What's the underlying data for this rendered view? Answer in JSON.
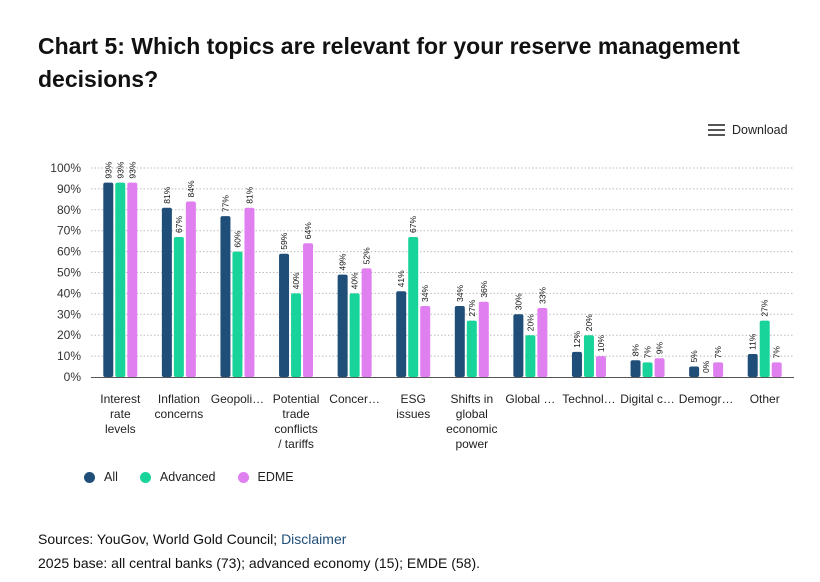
{
  "title": "Chart 5: Which topics are relevant for your reserve management decisions?",
  "download_label": "Download",
  "colors": {
    "All": "#1f4e79",
    "Advanced": "#18d49a",
    "EDME": "#e07ff0"
  },
  "legend": [
    {
      "label": "All",
      "color": "#1f4e79"
    },
    {
      "label": "Advanced",
      "color": "#18d49a"
    },
    {
      "label": "EDME",
      "color": "#e07ff0"
    }
  ],
  "sources_prefix": "Sources: YouGov, World Gold Council; ",
  "disclaimer_label": "Disclaimer",
  "base_note": "2025 base: all central banks (73); advanced economy (15); EMDE (58).",
  "chart_data": {
    "type": "bar",
    "categories": [
      [
        "Interest",
        "rate",
        "levels"
      ],
      [
        "Inflation",
        "concerns"
      ],
      [
        "Geopoli…"
      ],
      [
        "Potential",
        "trade",
        "conflicts",
        "/ tariffs"
      ],
      [
        "Concer…"
      ],
      [
        "ESG",
        "issues"
      ],
      [
        "Shifts in",
        "global",
        "economic",
        "power"
      ],
      [
        "Global …"
      ],
      [
        "Technol…"
      ],
      [
        "Digital c…"
      ],
      [
        "Demogr…"
      ],
      [
        "Other"
      ]
    ],
    "series": [
      {
        "name": "All",
        "values": [
          93,
          81,
          77,
          59,
          49,
          41,
          34,
          30,
          12,
          8,
          5,
          11
        ]
      },
      {
        "name": "Advanced",
        "values": [
          93,
          67,
          60,
          40,
          40,
          67,
          27,
          20,
          20,
          7,
          0,
          27
        ]
      },
      {
        "name": "EDME",
        "values": [
          93,
          84,
          81,
          64,
          52,
          34,
          36,
          33,
          10,
          9,
          7,
          7
        ]
      }
    ],
    "ylim": [
      0,
      100
    ],
    "yticks": [
      "0%",
      "10%",
      "20%",
      "30%",
      "40%",
      "50%",
      "60%",
      "70%",
      "80%",
      "90%",
      "100%"
    ],
    "value_suffix": "%",
    "grid": true,
    "legend_position": "bottom-left"
  }
}
